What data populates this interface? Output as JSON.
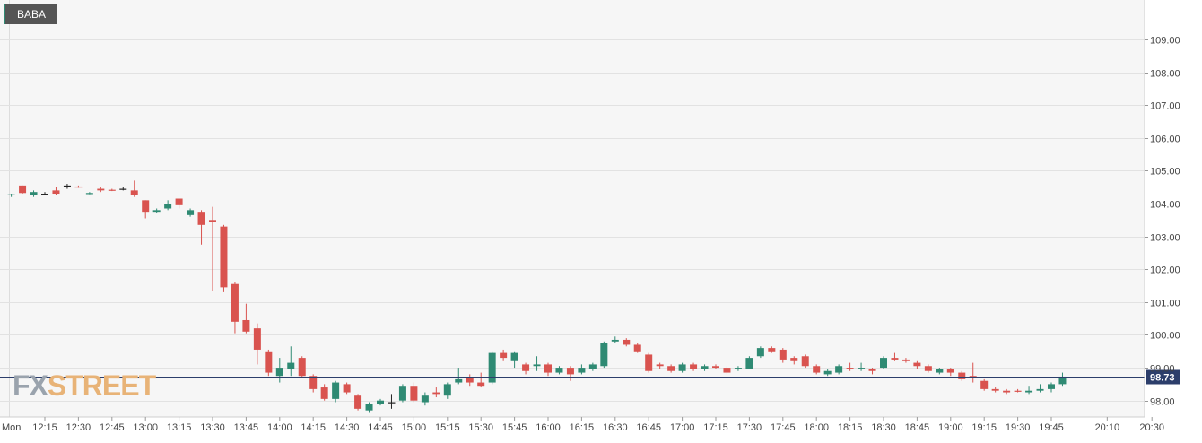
{
  "symbol": "BABA",
  "watermark": {
    "fx": "FX",
    "street": "STREET"
  },
  "colors": {
    "up": "#2f8a73",
    "down": "#d9534f",
    "doji": "#222222",
    "background": "#f6f6f6",
    "grid": "#e2e2e2",
    "price_line": "#2c3e6b",
    "price_label_bg": "#2c3e6b"
  },
  "chart_data": {
    "type": "candlestick",
    "interval_minutes": 5,
    "day_label": "Mon",
    "x_tick_labels": [
      "12:15",
      "12:30",
      "12:45",
      "13:00",
      "13:15",
      "13:30",
      "13:45",
      "14:00",
      "14:15",
      "14:30",
      "14:45",
      "15:00",
      "15:15",
      "15:30",
      "15:45",
      "16:00",
      "16:15",
      "16:30",
      "16:45",
      "17:00",
      "17:15",
      "17:30",
      "17:45",
      "18:00",
      "18:15",
      "18:30",
      "18:45",
      "19:00",
      "19:15",
      "19:30",
      "19:45",
      "20:10",
      "20:30"
    ],
    "y_tick_labels": [
      "98.00",
      "99.00",
      "100.00",
      "101.00",
      "102.00",
      "103.00",
      "104.00",
      "105.00",
      "106.00",
      "107.00",
      "108.00",
      "109.00"
    ],
    "ylim": [
      97.5,
      110.2
    ],
    "last_price": "98.73",
    "last_price_value": 98.73,
    "candles": [
      {
        "t": "12:00",
        "o": 104.25,
        "h": 104.3,
        "l": 104.2,
        "c": 104.28
      },
      {
        "t": "12:05",
        "o": 104.55,
        "h": 104.55,
        "l": 104.3,
        "c": 104.32
      },
      {
        "t": "12:10",
        "o": 104.25,
        "h": 104.4,
        "l": 104.2,
        "c": 104.35
      },
      {
        "t": "12:15",
        "o": 104.3,
        "h": 104.35,
        "l": 104.25,
        "c": 104.3
      },
      {
        "t": "12:20",
        "o": 104.4,
        "h": 104.5,
        "l": 104.25,
        "c": 104.3
      },
      {
        "t": "12:25",
        "o": 104.55,
        "h": 104.6,
        "l": 104.45,
        "c": 104.55
      },
      {
        "t": "12:30",
        "o": 104.52,
        "h": 104.55,
        "l": 104.48,
        "c": 104.5
      },
      {
        "t": "12:35",
        "o": 104.3,
        "h": 104.35,
        "l": 104.28,
        "c": 104.32
      },
      {
        "t": "12:40",
        "o": 104.45,
        "h": 104.5,
        "l": 104.35,
        "c": 104.4
      },
      {
        "t": "12:45",
        "o": 104.42,
        "h": 104.45,
        "l": 104.38,
        "c": 104.4
      },
      {
        "t": "12:50",
        "o": 104.45,
        "h": 104.5,
        "l": 104.4,
        "c": 104.45
      },
      {
        "t": "12:55",
        "o": 104.4,
        "h": 104.7,
        "l": 104.2,
        "c": 104.25
      },
      {
        "t": "13:00",
        "o": 104.1,
        "h": 104.1,
        "l": 103.55,
        "c": 103.75
      },
      {
        "t": "13:05",
        "o": 103.75,
        "h": 103.85,
        "l": 103.7,
        "c": 103.8
      },
      {
        "t": "13:10",
        "o": 103.85,
        "h": 104.1,
        "l": 103.8,
        "c": 104.0
      },
      {
        "t": "13:15",
        "o": 104.15,
        "h": 104.15,
        "l": 103.85,
        "c": 103.95
      },
      {
        "t": "13:20",
        "o": 103.65,
        "h": 103.85,
        "l": 103.6,
        "c": 103.8
      },
      {
        "t": "13:25",
        "o": 103.75,
        "h": 103.8,
        "l": 102.75,
        "c": 103.35
      },
      {
        "t": "13:30",
        "o": 103.5,
        "h": 103.9,
        "l": 101.35,
        "c": 103.45
      },
      {
        "t": "13:35",
        "o": 103.3,
        "h": 103.35,
        "l": 101.3,
        "c": 101.45
      },
      {
        "t": "13:40",
        "o": 101.55,
        "h": 101.6,
        "l": 100.05,
        "c": 100.4
      },
      {
        "t": "13:45",
        "o": 100.45,
        "h": 100.95,
        "l": 100.05,
        "c": 100.1
      },
      {
        "t": "13:50",
        "o": 100.2,
        "h": 100.35,
        "l": 99.1,
        "c": 99.55
      },
      {
        "t": "13:55",
        "o": 99.5,
        "h": 99.55,
        "l": 98.75,
        "c": 98.85
      },
      {
        "t": "14:00",
        "o": 98.75,
        "h": 99.3,
        "l": 98.55,
        "c": 99.0
      },
      {
        "t": "14:05",
        "o": 98.95,
        "h": 99.65,
        "l": 98.75,
        "c": 99.15
      },
      {
        "t": "14:10",
        "o": 99.3,
        "h": 99.35,
        "l": 98.7,
        "c": 98.75
      },
      {
        "t": "14:15",
        "o": 98.75,
        "h": 98.8,
        "l": 98.25,
        "c": 98.35
      },
      {
        "t": "14:20",
        "o": 98.4,
        "h": 98.5,
        "l": 98.0,
        "c": 98.05
      },
      {
        "t": "14:25",
        "o": 98.05,
        "h": 98.6,
        "l": 97.95,
        "c": 98.55
      },
      {
        "t": "14:30",
        "o": 98.5,
        "h": 98.55,
        "l": 98.2,
        "c": 98.25
      },
      {
        "t": "14:35",
        "o": 98.15,
        "h": 98.2,
        "l": 97.7,
        "c": 97.75
      },
      {
        "t": "14:40",
        "o": 97.7,
        "h": 97.95,
        "l": 97.65,
        "c": 97.9
      },
      {
        "t": "14:45",
        "o": 97.9,
        "h": 98.05,
        "l": 97.85,
        "c": 98.0
      },
      {
        "t": "14:50",
        "o": 97.95,
        "h": 98.2,
        "l": 97.75,
        "c": 97.95
      },
      {
        "t": "14:55",
        "o": 98.0,
        "h": 98.5,
        "l": 97.95,
        "c": 98.45
      },
      {
        "t": "15:00",
        "o": 98.45,
        "h": 98.55,
        "l": 97.95,
        "c": 98.0
      },
      {
        "t": "15:05",
        "o": 97.95,
        "h": 98.25,
        "l": 97.85,
        "c": 98.15
      },
      {
        "t": "15:10",
        "o": 98.25,
        "h": 98.4,
        "l": 98.1,
        "c": 98.2
      },
      {
        "t": "15:15",
        "o": 98.15,
        "h": 98.55,
        "l": 98.05,
        "c": 98.5
      },
      {
        "t": "15:20",
        "o": 98.55,
        "h": 99.0,
        "l": 98.5,
        "c": 98.65
      },
      {
        "t": "15:25",
        "o": 98.7,
        "h": 98.8,
        "l": 98.45,
        "c": 98.55
      },
      {
        "t": "15:30",
        "o": 98.55,
        "h": 98.85,
        "l": 98.4,
        "c": 98.45
      },
      {
        "t": "15:35",
        "o": 98.55,
        "h": 99.5,
        "l": 98.5,
        "c": 99.45
      },
      {
        "t": "15:40",
        "o": 99.45,
        "h": 99.55,
        "l": 99.2,
        "c": 99.3
      },
      {
        "t": "15:45",
        "o": 99.2,
        "h": 99.5,
        "l": 99.0,
        "c": 99.45
      },
      {
        "t": "15:50",
        "o": 99.1,
        "h": 99.15,
        "l": 98.8,
        "c": 98.9
      },
      {
        "t": "15:55",
        "o": 99.05,
        "h": 99.35,
        "l": 98.9,
        "c": 99.1
      },
      {
        "t": "16:00",
        "o": 99.1,
        "h": 99.15,
        "l": 98.75,
        "c": 98.85
      },
      {
        "t": "16:05",
        "o": 98.85,
        "h": 99.05,
        "l": 98.8,
        "c": 99.0
      },
      {
        "t": "16:10",
        "o": 99.0,
        "h": 99.05,
        "l": 98.6,
        "c": 98.8
      },
      {
        "t": "16:15",
        "o": 98.85,
        "h": 99.1,
        "l": 98.8,
        "c": 99.0
      },
      {
        "t": "16:20",
        "o": 98.95,
        "h": 99.15,
        "l": 98.9,
        "c": 99.1
      },
      {
        "t": "16:25",
        "o": 99.05,
        "h": 99.8,
        "l": 99.0,
        "c": 99.75
      },
      {
        "t": "16:30",
        "o": 99.8,
        "h": 99.95,
        "l": 99.75,
        "c": 99.85
      },
      {
        "t": "16:35",
        "o": 99.85,
        "h": 99.9,
        "l": 99.65,
        "c": 99.7
      },
      {
        "t": "16:40",
        "o": 99.7,
        "h": 99.75,
        "l": 99.45,
        "c": 99.5
      },
      {
        "t": "16:45",
        "o": 99.4,
        "h": 99.45,
        "l": 98.85,
        "c": 98.9
      },
      {
        "t": "16:50",
        "o": 99.1,
        "h": 99.15,
        "l": 98.95,
        "c": 99.05
      },
      {
        "t": "16:55",
        "o": 99.05,
        "h": 99.1,
        "l": 98.85,
        "c": 98.9
      },
      {
        "t": "17:00",
        "o": 98.9,
        "h": 99.15,
        "l": 98.85,
        "c": 99.1
      },
      {
        "t": "17:05",
        "o": 99.1,
        "h": 99.15,
        "l": 98.9,
        "c": 98.95
      },
      {
        "t": "17:10",
        "o": 98.95,
        "h": 99.1,
        "l": 98.9,
        "c": 99.05
      },
      {
        "t": "17:15",
        "o": 99.05,
        "h": 99.1,
        "l": 98.95,
        "c": 99.0
      },
      {
        "t": "17:20",
        "o": 99.0,
        "h": 99.05,
        "l": 98.8,
        "c": 98.85
      },
      {
        "t": "17:25",
        "o": 98.95,
        "h": 99.05,
        "l": 98.9,
        "c": 99.0
      },
      {
        "t": "17:30",
        "o": 98.95,
        "h": 99.35,
        "l": 98.95,
        "c": 99.3
      },
      {
        "t": "17:35",
        "o": 99.35,
        "h": 99.65,
        "l": 99.3,
        "c": 99.6
      },
      {
        "t": "17:40",
        "o": 99.6,
        "h": 99.65,
        "l": 99.45,
        "c": 99.5
      },
      {
        "t": "17:45",
        "o": 99.55,
        "h": 99.6,
        "l": 99.15,
        "c": 99.25
      },
      {
        "t": "17:50",
        "o": 99.3,
        "h": 99.35,
        "l": 99.1,
        "c": 99.2
      },
      {
        "t": "17:55",
        "o": 99.35,
        "h": 99.4,
        "l": 99.0,
        "c": 99.05
      },
      {
        "t": "18:00",
        "o": 99.05,
        "h": 99.1,
        "l": 98.8,
        "c": 98.85
      },
      {
        "t": "18:05",
        "o": 98.8,
        "h": 98.95,
        "l": 98.75,
        "c": 98.9
      },
      {
        "t": "18:10",
        "o": 98.85,
        "h": 99.1,
        "l": 98.8,
        "c": 99.05
      },
      {
        "t": "18:15",
        "o": 99.0,
        "h": 99.15,
        "l": 98.9,
        "c": 98.95
      },
      {
        "t": "18:20",
        "o": 98.95,
        "h": 99.15,
        "l": 98.9,
        "c": 99.0
      },
      {
        "t": "18:25",
        "o": 98.95,
        "h": 99.0,
        "l": 98.8,
        "c": 98.9
      },
      {
        "t": "18:30",
        "o": 99.0,
        "h": 99.35,
        "l": 98.95,
        "c": 99.3
      },
      {
        "t": "18:35",
        "o": 99.3,
        "h": 99.45,
        "l": 99.2,
        "c": 99.25
      },
      {
        "t": "18:40",
        "o": 99.25,
        "h": 99.3,
        "l": 99.15,
        "c": 99.2
      },
      {
        "t": "18:45",
        "o": 99.15,
        "h": 99.2,
        "l": 98.95,
        "c": 99.05
      },
      {
        "t": "18:50",
        "o": 99.05,
        "h": 99.1,
        "l": 98.85,
        "c": 98.9
      },
      {
        "t": "18:55",
        "o": 98.85,
        "h": 99.0,
        "l": 98.8,
        "c": 98.95
      },
      {
        "t": "19:00",
        "o": 98.95,
        "h": 99.0,
        "l": 98.75,
        "c": 98.85
      },
      {
        "t": "19:05",
        "o": 98.85,
        "h": 98.9,
        "l": 98.6,
        "c": 98.65
      },
      {
        "t": "19:10",
        "o": 98.75,
        "h": 99.15,
        "l": 98.55,
        "c": 98.7
      },
      {
        "t": "19:15",
        "o": 98.6,
        "h": 98.65,
        "l": 98.3,
        "c": 98.35
      },
      {
        "t": "19:20",
        "o": 98.35,
        "h": 98.4,
        "l": 98.25,
        "c": 98.3
      },
      {
        "t": "19:25",
        "o": 98.3,
        "h": 98.35,
        "l": 98.2,
        "c": 98.25
      },
      {
        "t": "19:30",
        "o": 98.3,
        "h": 98.35,
        "l": 98.25,
        "c": 98.28
      },
      {
        "t": "19:35",
        "o": 98.25,
        "h": 98.45,
        "l": 98.2,
        "c": 98.3
      },
      {
        "t": "19:40",
        "o": 98.3,
        "h": 98.5,
        "l": 98.25,
        "c": 98.35
      },
      {
        "t": "19:45",
        "o": 98.35,
        "h": 98.55,
        "l": 98.25,
        "c": 98.5
      },
      {
        "t": "19:50",
        "o": 98.5,
        "h": 98.85,
        "l": 98.45,
        "c": 98.73
      }
    ]
  }
}
